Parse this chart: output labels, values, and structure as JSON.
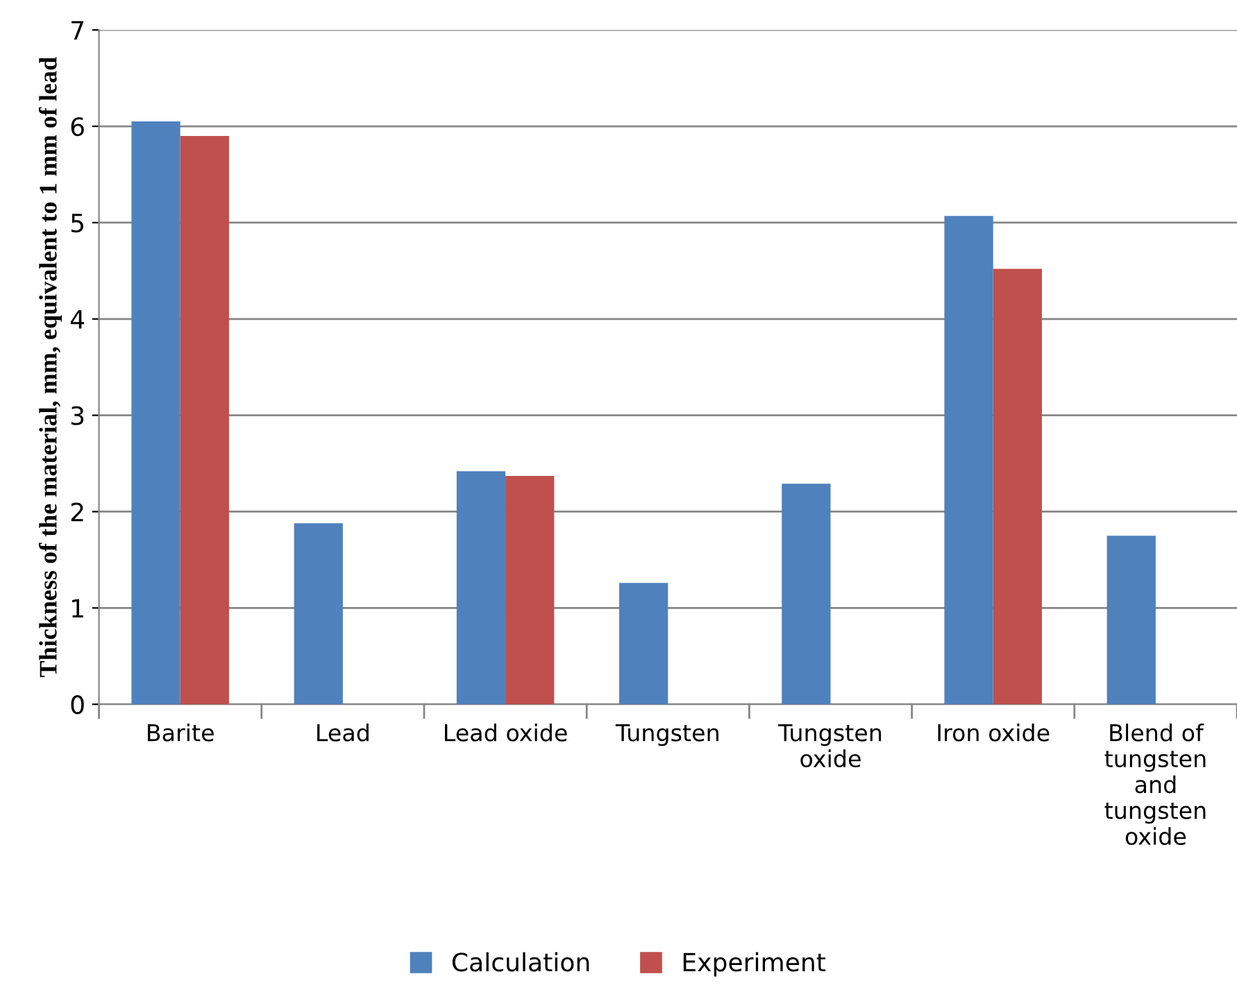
{
  "chart_data": {
    "type": "bar",
    "ylabel": "Thickness of the material, mm, equivalent to 1 mm of lead",
    "categories": [
      "Barite",
      "Lead",
      "Lead oxide",
      "Tungsten",
      "Tungsten\noxide",
      "Iron oxide",
      "Blend of\ntungsten\nand\ntungsten\noxide"
    ],
    "series": [
      {
        "name": "Calculation",
        "color": "#4f81bd",
        "values": [
          6.05,
          1.88,
          2.42,
          1.26,
          2.29,
          5.07,
          1.75
        ]
      },
      {
        "name": "Experiment",
        "color": "#c0504d",
        "values": [
          5.9,
          null,
          2.37,
          null,
          null,
          4.52,
          null
        ]
      }
    ],
    "ylim": [
      0,
      7
    ],
    "yticks": [
      0,
      1,
      2,
      3,
      4,
      5,
      6,
      7
    ],
    "grid": "y",
    "legend": "bottom"
  }
}
